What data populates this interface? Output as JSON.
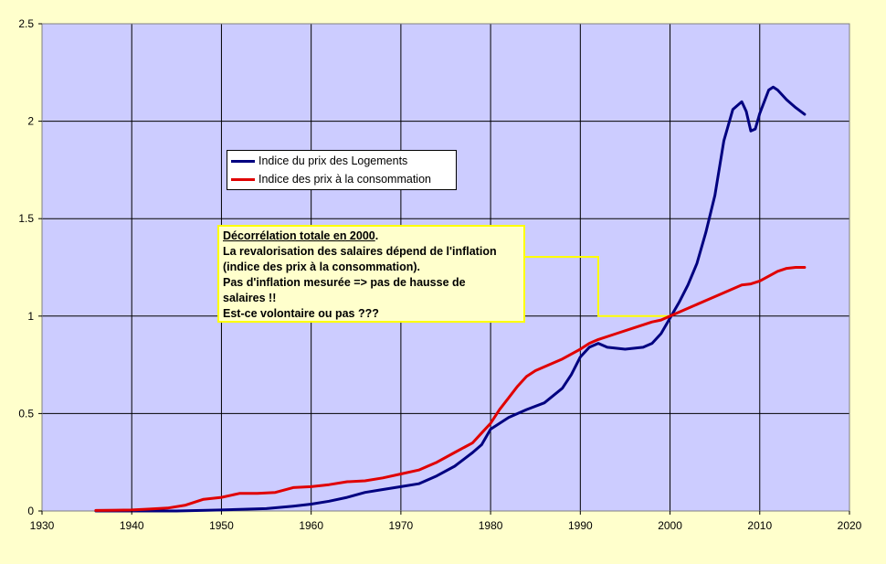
{
  "chart_data": {
    "type": "line",
    "xlim": [
      1930,
      2020
    ],
    "ylim": [
      0,
      2.5
    ],
    "x_ticks": [
      "1930",
      "1940",
      "1950",
      "1960",
      "1970",
      "1980",
      "1990",
      "2000",
      "2010",
      "2020"
    ],
    "y_ticks": [
      "0",
      "0.5",
      "1",
      "1.5",
      "2",
      "2.5"
    ],
    "grid": true,
    "legend_position": "upper-left-center",
    "series": [
      {
        "name": "Indice du prix des Logements",
        "color": "#000080",
        "points": [
          [
            1936,
            0.0
          ],
          [
            1945,
            0.0
          ],
          [
            1950,
            0.005
          ],
          [
            1955,
            0.012
          ],
          [
            1958,
            0.025
          ],
          [
            1960,
            0.035
          ],
          [
            1962,
            0.05
          ],
          [
            1964,
            0.07
          ],
          [
            1966,
            0.095
          ],
          [
            1968,
            0.11
          ],
          [
            1970,
            0.125
          ],
          [
            1972,
            0.14
          ],
          [
            1974,
            0.18
          ],
          [
            1976,
            0.23
          ],
          [
            1978,
            0.3
          ],
          [
            1979,
            0.34
          ],
          [
            1980,
            0.42
          ],
          [
            1982,
            0.48
          ],
          [
            1984,
            0.52
          ],
          [
            1986,
            0.555
          ],
          [
            1988,
            0.63
          ],
          [
            1989,
            0.7
          ],
          [
            1990,
            0.79
          ],
          [
            1991,
            0.84
          ],
          [
            1992,
            0.86
          ],
          [
            1993,
            0.84
          ],
          [
            1995,
            0.83
          ],
          [
            1997,
            0.84
          ],
          [
            1998,
            0.86
          ],
          [
            1999,
            0.91
          ],
          [
            2000,
            0.99
          ],
          [
            2001,
            1.07
          ],
          [
            2002,
            1.16
          ],
          [
            2003,
            1.27
          ],
          [
            2004,
            1.43
          ],
          [
            2005,
            1.62
          ],
          [
            2006,
            1.9
          ],
          [
            2007,
            2.06
          ],
          [
            2008,
            2.1
          ],
          [
            2008.5,
            2.05
          ],
          [
            2009,
            1.95
          ],
          [
            2009.5,
            1.96
          ],
          [
            2010,
            2.04
          ],
          [
            2011,
            2.16
          ],
          [
            2011.5,
            2.175
          ],
          [
            2012,
            2.16
          ],
          [
            2013,
            2.11
          ],
          [
            2014,
            2.07
          ],
          [
            2015,
            2.035
          ]
        ]
      },
      {
        "name": "Indice des prix à la consommation",
        "color": "#e00000",
        "points": [
          [
            1936,
            0.003
          ],
          [
            1940,
            0.005
          ],
          [
            1942,
            0.01
          ],
          [
            1944,
            0.015
          ],
          [
            1946,
            0.03
          ],
          [
            1948,
            0.06
          ],
          [
            1950,
            0.07
          ],
          [
            1952,
            0.09
          ],
          [
            1954,
            0.09
          ],
          [
            1956,
            0.095
          ],
          [
            1958,
            0.12
          ],
          [
            1960,
            0.125
          ],
          [
            1962,
            0.135
          ],
          [
            1964,
            0.15
          ],
          [
            1966,
            0.155
          ],
          [
            1968,
            0.17
          ],
          [
            1970,
            0.19
          ],
          [
            1972,
            0.21
          ],
          [
            1974,
            0.25
          ],
          [
            1976,
            0.3
          ],
          [
            1978,
            0.35
          ],
          [
            1979,
            0.4
          ],
          [
            1980,
            0.45
          ],
          [
            1981,
            0.52
          ],
          [
            1982,
            0.58
          ],
          [
            1983,
            0.64
          ],
          [
            1984,
            0.69
          ],
          [
            1985,
            0.72
          ],
          [
            1986,
            0.74
          ],
          [
            1988,
            0.78
          ],
          [
            1990,
            0.83
          ],
          [
            1991,
            0.86
          ],
          [
            1992,
            0.88
          ],
          [
            1994,
            0.91
          ],
          [
            1996,
            0.94
          ],
          [
            1998,
            0.97
          ],
          [
            1999,
            0.98
          ],
          [
            2000,
            1.0
          ],
          [
            2002,
            1.04
          ],
          [
            2004,
            1.08
          ],
          [
            2006,
            1.12
          ],
          [
            2008,
            1.16
          ],
          [
            2009,
            1.165
          ],
          [
            2010,
            1.18
          ],
          [
            2012,
            1.23
          ],
          [
            2013,
            1.245
          ],
          [
            2014,
            1.25
          ],
          [
            2015,
            1.25
          ]
        ]
      }
    ],
    "annotation": {
      "title": "Décorrélation totale en 2000",
      "title_suffix": ".",
      "lines": [
        "La revalorisation des salaires dépend de l'inflation",
        "(indice des prix à la consommation).",
        "Pas d'inflation mesurée => pas de hausse de",
        "salaires !!",
        "Est-ce volontaire ou pas ???"
      ],
      "connector_color": "#ffff00"
    },
    "colors": {
      "plot_background": "#ccccff",
      "outer_background": "#ffffcc",
      "grid": "#000000"
    }
  }
}
